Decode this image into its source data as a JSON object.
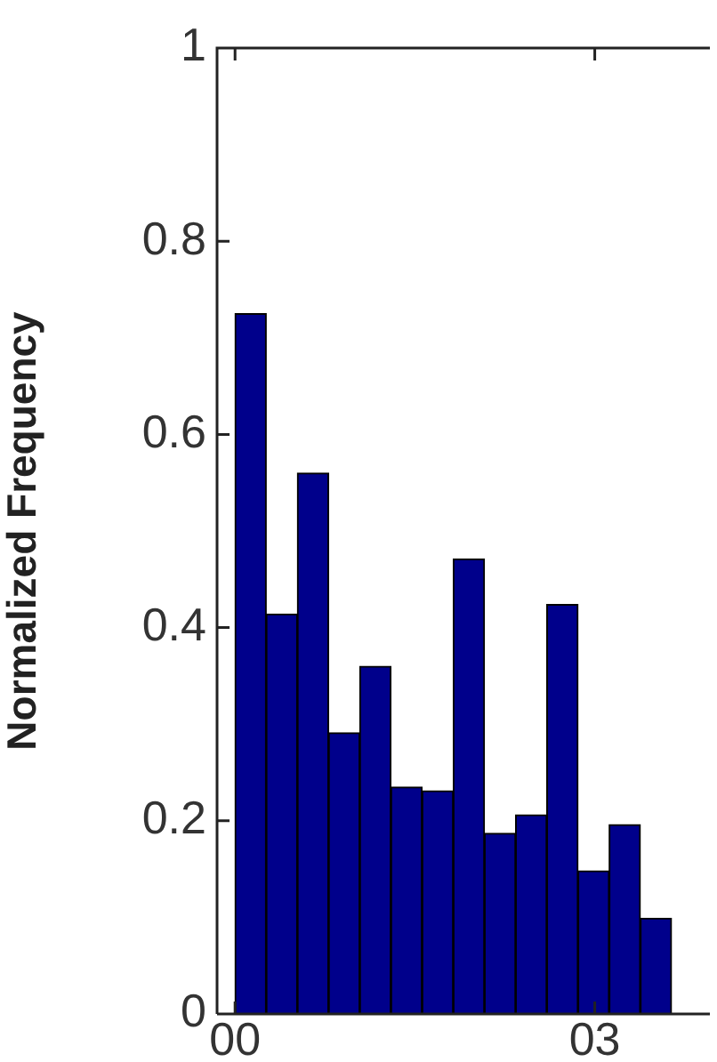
{
  "chart_data": {
    "type": "histogram",
    "ylabel": "Normalized Frequency",
    "bins": [
      0,
      0.26,
      0.52,
      0.78,
      1.04,
      1.3,
      1.56,
      1.82,
      2.08,
      2.34,
      2.6,
      2.86,
      3.12,
      3.38,
      3.64
    ],
    "values": [
      0.725,
      0.414,
      0.56,
      0.291,
      0.36,
      0.235,
      0.231,
      0.471,
      0.187,
      0.206,
      0.424,
      0.148,
      0.196,
      0.099
    ],
    "color": "#00008b",
    "xlim": [
      -0.15,
      3.96
    ],
    "xticks": [
      {
        "value": 0,
        "label": "00"
      },
      {
        "value": 3,
        "label": "03"
      }
    ],
    "ylim": [
      0,
      1
    ],
    "yticks": [
      0,
      0.2,
      0.4,
      0.6,
      0.8,
      1
    ],
    "grid": false,
    "legend": false
  }
}
